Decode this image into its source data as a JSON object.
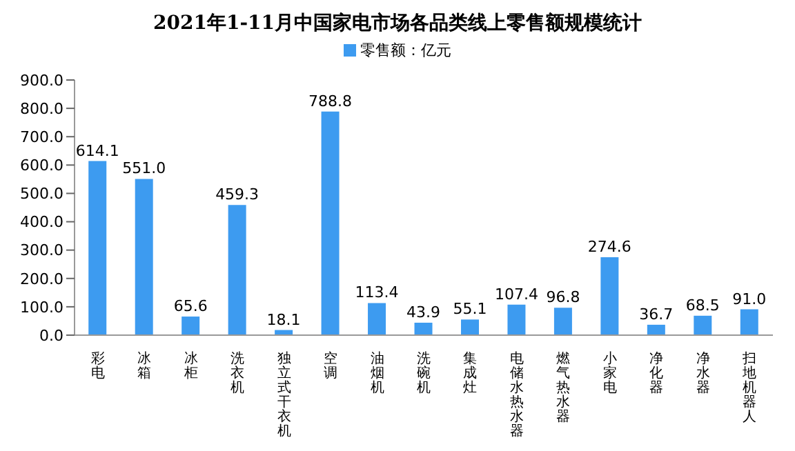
{
  "chart_data": {
    "type": "bar",
    "title": "2021年1-11月中国家电市场各品类线上零售额规模统计",
    "categories": [
      "彩电",
      "冰箱",
      "冰柜",
      "洗衣机",
      "独立式干衣机",
      "空调",
      "油烟机",
      "洗碗机",
      "集成灶",
      "电储水热水器",
      "燃气热水器",
      "小家电",
      "净化器",
      "净水器",
      "扫地机器人"
    ],
    "series": [
      {
        "name": "零售额：亿元",
        "color": "#3d9bf0",
        "values": [
          614.1,
          551.0,
          65.6,
          459.3,
          18.1,
          788.8,
          113.4,
          43.9,
          55.1,
          107.4,
          96.8,
          274.6,
          36.7,
          68.5,
          91.0
        ],
        "value_labels": [
          "614.1",
          "551.0",
          "65.6",
          "459.3",
          "18.1",
          "788.8",
          "113.4",
          "43.9",
          "55.1",
          "107.4",
          "96.8",
          "274.6",
          "36.7",
          "68.5",
          "91.0"
        ]
      }
    ],
    "ylim": [
      0,
      900
    ],
    "yticks": [
      {
        "value": 0,
        "label": "0.0"
      },
      {
        "value": 100,
        "label": "100.0"
      },
      {
        "value": 200,
        "label": "200.0"
      },
      {
        "value": 300,
        "label": "300.0"
      },
      {
        "value": 400,
        "label": "400.0"
      },
      {
        "value": 500,
        "label": "500.0"
      },
      {
        "value": 600,
        "label": "600.0"
      },
      {
        "value": 700,
        "label": "700.0"
      },
      {
        "value": 800,
        "label": "800.0"
      },
      {
        "value": 900,
        "label": "900.0"
      }
    ],
    "legend": "top"
  }
}
